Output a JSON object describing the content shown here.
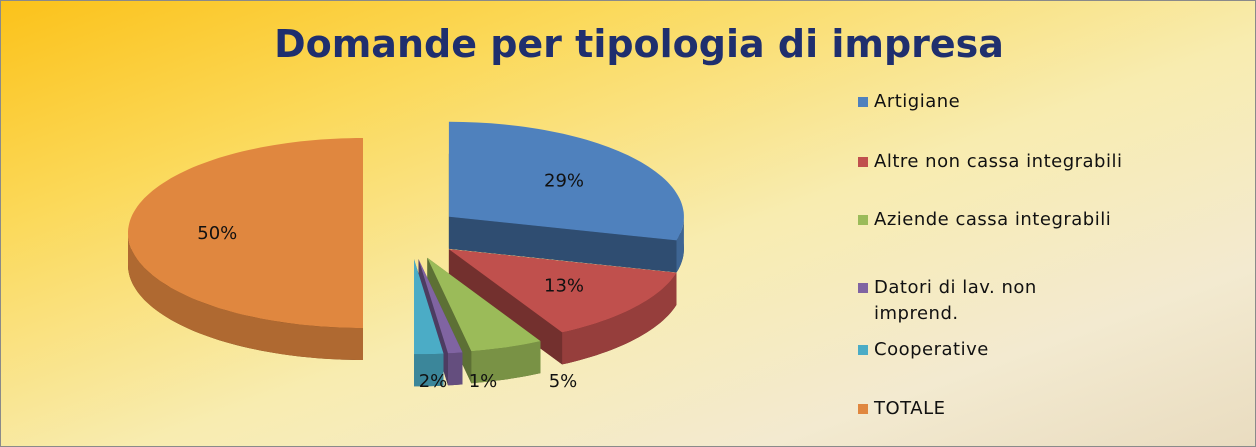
{
  "chart_data": {
    "type": "pie",
    "title": "Domande per tipologia di impresa",
    "categories": [
      "Artigiane",
      "Altre non cassa integrabili",
      "Aziende cassa integrabili",
      "Datori di lav. non imprend.",
      "Cooperative",
      "TOTALE"
    ],
    "values": [
      29,
      13,
      5,
      1,
      2,
      50
    ],
    "value_labels": [
      "29%",
      "13%",
      "5%",
      "1%",
      "2%",
      "50%"
    ],
    "colors": [
      "#4f81bd",
      "#c0504d",
      "#9bbb59",
      "#8064a2",
      "#4bacc6",
      "#e0873f"
    ],
    "legend": "right"
  }
}
